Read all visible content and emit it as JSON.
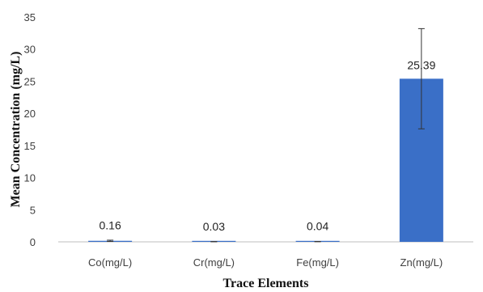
{
  "chart_data": {
    "type": "bar",
    "title": "",
    "xlabel": "Trace Elements",
    "ylabel": "Mean Concentration (mg/L)",
    "categories": [
      "Co(mg/L)",
      "Cr(mg/L)",
      "Fe(mg/L)",
      "Zn(mg/L)"
    ],
    "values": [
      0.16,
      0.03,
      0.04,
      25.39
    ],
    "value_labels": [
      "0.16",
      "0.03",
      "0.04",
      "25.39"
    ],
    "error_bars": [
      0.1,
      0.02,
      0.02,
      7.8
    ],
    "ylim": [
      0,
      35
    ],
    "yticks": [
      0,
      5,
      10,
      15,
      20,
      25,
      30,
      35
    ],
    "ytick_labels": [
      "0",
      "5",
      "10",
      "15",
      "20",
      "25",
      "30",
      "35"
    ],
    "grid": false,
    "legend": "none",
    "bar_color": "#3a6fc7",
    "axis_color": "#bfbfbf"
  }
}
